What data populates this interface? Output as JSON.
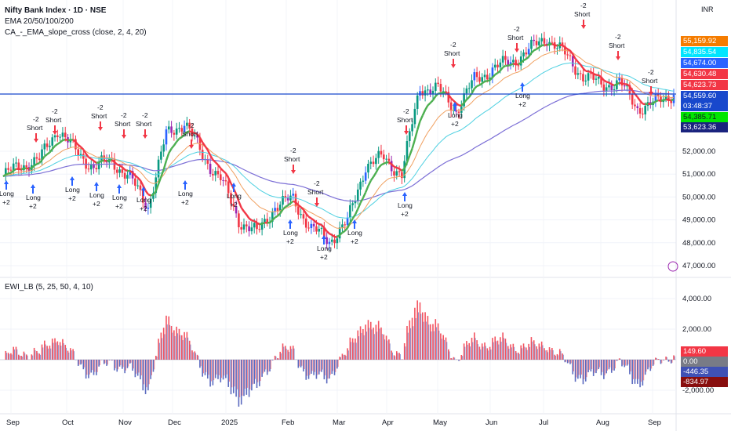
{
  "header": {
    "title": "Nifty Bank Index · 1D · NSE",
    "indicator_1": "EMA 20/50/100/200",
    "indicator_2": "CA_-_EMA_slope_cross (close, 2, 4, 20)",
    "currency": "INR"
  },
  "oscillator": {
    "title": "EWI_LB (5, 25, 50, 4, 10)"
  },
  "price_badges": [
    {
      "label": "55,159.92",
      "color": "#f57c00"
    },
    {
      "label": "54,835.54",
      "color": "#00e5ff"
    },
    {
      "label": "54,674.00",
      "color": "#2962ff"
    },
    {
      "label": "54,630.48",
      "color": "#f23645"
    },
    {
      "label": "54,623.73",
      "color": "#f23645"
    },
    {
      "label": "54,559.60",
      "color": "#1848cc"
    },
    {
      "label": "03:48:37",
      "color": "#1848cc"
    },
    {
      "label": "54,385.71",
      "color": "#00e600"
    },
    {
      "label": "53,623.36",
      "color": "#1a237e"
    }
  ],
  "osc_badges": [
    {
      "label": "149.60",
      "color": "#f23645"
    },
    {
      "label": "0.00",
      "color": "#787b86"
    },
    {
      "label": "-446.35",
      "color": "#3f51b5"
    },
    {
      "label": "-834.97",
      "color": "#880e0e"
    }
  ],
  "chart_data": {
    "type": "candlestick",
    "price_axis_ticks": [
      "52,000.00",
      "51,000.00",
      "50,000.00",
      "49,000.00",
      "48,000.00",
      "47,000.00"
    ],
    "osc_axis_ticks": [
      "4,000.00",
      "2,000.00",
      "-2,000.00"
    ],
    "time_axis_labels": [
      "Sep",
      "Oct",
      "Nov",
      "Dec",
      "2025",
      "Feb",
      "Mar",
      "Apr",
      "May",
      "Jun",
      "Jul",
      "Aug",
      "Sep"
    ],
    "price_path": [
      [
        "Sep",
        50900
      ],
      [
        "Sep",
        51400
      ],
      [
        "Sep",
        51600
      ],
      [
        "Oct",
        53000
      ],
      [
        "Oct",
        52000
      ],
      [
        "Oct",
        51300
      ],
      [
        "Nov",
        51600
      ],
      [
        "Nov",
        50800
      ],
      [
        "Nov",
        49600
      ],
      [
        "Dec",
        52700
      ],
      [
        "Dec",
        53300
      ],
      [
        "Dec",
        51800
      ],
      [
        "2025",
        50800
      ],
      [
        "2025",
        49000
      ],
      [
        "Feb",
        48400
      ],
      [
        "Feb",
        49600
      ],
      [
        "Feb",
        49900
      ],
      [
        "Mar",
        48600
      ],
      [
        "Mar",
        48100
      ],
      [
        "Mar",
        48900
      ],
      [
        "Apr",
        51400
      ],
      [
        "Apr",
        51700
      ],
      [
        "Apr",
        51000
      ],
      [
        "May",
        54800
      ],
      [
        "May",
        54700
      ],
      [
        "May",
        53800
      ],
      [
        "Jun",
        55100
      ],
      [
        "Jun",
        55600
      ],
      [
        "Jun",
        55900
      ],
      [
        "Jul",
        56400
      ],
      [
        "Jul",
        57000
      ],
      [
        "Jul",
        56200
      ],
      [
        "Aug",
        55300
      ],
      [
        "Aug",
        54900
      ],
      [
        "Aug",
        55000
      ],
      [
        "Sep",
        53900
      ],
      [
        "Sep",
        54100
      ],
      [
        "Sep",
        54560
      ]
    ],
    "series": [
      {
        "name": "EMA 20",
        "color": "#f23645"
      },
      {
        "name": "EMA 50",
        "color": "#f0a060"
      },
      {
        "name": "EMA 100",
        "color": "#4dd0e1"
      },
      {
        "name": "EMA 200",
        "color": "#7c6fd6"
      }
    ],
    "signals_long": [
      {
        "text1": "Long",
        "text2": "+2"
      },
      {
        "text1": "Long",
        "text2": "+2"
      },
      {
        "text1": "Long",
        "text2": "+2"
      },
      {
        "text1": "Long",
        "text2": "+2"
      },
      {
        "text1": "Long",
        "text2": "+2"
      },
      {
        "text1": "Long",
        "text2": "+2"
      },
      {
        "text1": "Long",
        "text2": "+2"
      },
      {
        "text1": "Long",
        "text2": "+2"
      },
      {
        "text1": "Long",
        "text2": "+2"
      },
      {
        "text1": "Long",
        "text2": "+2"
      },
      {
        "text1": "Long",
        "text2": "+2"
      },
      {
        "text1": "Long",
        "text2": "+2"
      },
      {
        "text1": "Long",
        "text2": "+2"
      },
      {
        "text1": "Long",
        "text2": "+2"
      }
    ],
    "signals_short": [
      {
        "text1": "-2",
        "text2": "Short"
      },
      {
        "text1": "-2",
        "text2": "Short"
      },
      {
        "text1": "-2",
        "text2": "Short"
      },
      {
        "text1": "-2",
        "text2": "Short"
      },
      {
        "text1": "-2",
        "text2": "Short"
      },
      {
        "text1": "-2",
        "text2": "Short"
      },
      {
        "text1": "-2",
        "text2": "Short"
      },
      {
        "text1": "-2",
        "text2": "Short"
      },
      {
        "text1": "-2",
        "text2": "Short"
      },
      {
        "text1": "-2",
        "text2": "Short"
      },
      {
        "text1": "-2",
        "text2": "Short"
      },
      {
        "text1": "-2",
        "text2": "Short"
      },
      {
        "text1": "-2",
        "text2": "Short"
      },
      {
        "text1": "-2",
        "text2": "Short"
      }
    ],
    "oscillator_colors": {
      "positive": "#f23645",
      "negative": "#3f51b5"
    }
  }
}
